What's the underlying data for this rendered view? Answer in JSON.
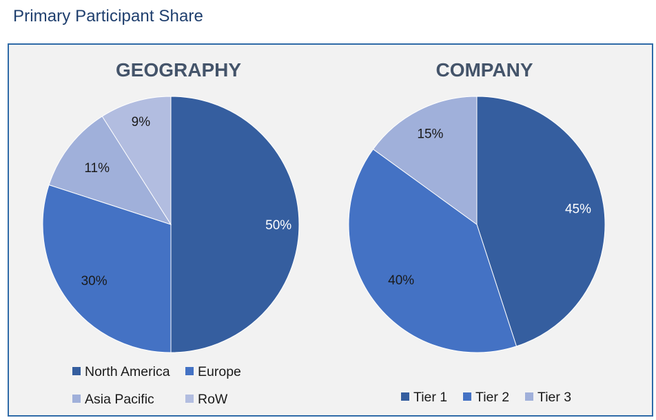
{
  "page_title": "Primary Participant Share",
  "chart_data": [
    {
      "type": "pie",
      "title": "GEOGRAPHY",
      "categories": [
        "North America",
        "Europe",
        "Asia Pacific",
        "RoW"
      ],
      "values": [
        50,
        30,
        11,
        9
      ],
      "labels": [
        "50%",
        "30%",
        "11%",
        "9%"
      ],
      "colors": [
        "#355e9f",
        "#4472c4",
        "#a0b0da",
        "#b2bde0"
      ],
      "legend_position": "bottom"
    },
    {
      "type": "pie",
      "title": "COMPANY",
      "categories": [
        "Tier 1",
        "Tier 2",
        "Tier 3"
      ],
      "values": [
        45,
        40,
        15
      ],
      "labels": [
        "45%",
        "40%",
        "15%"
      ],
      "colors": [
        "#355e9f",
        "#4472c4",
        "#a0b0da"
      ],
      "legend_position": "bottom"
    }
  ]
}
